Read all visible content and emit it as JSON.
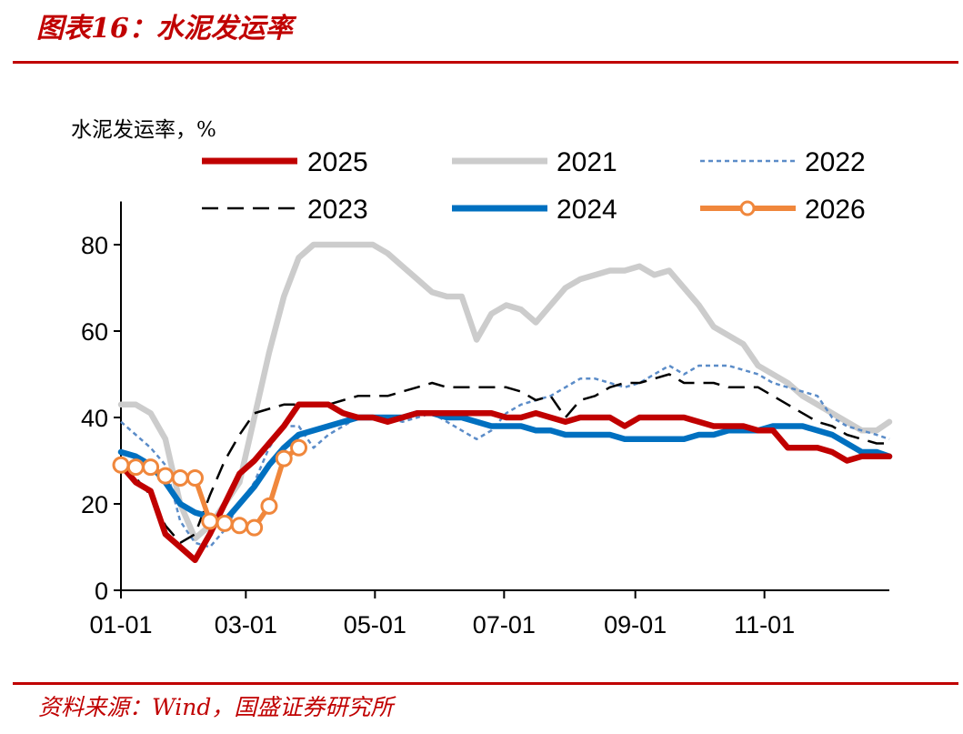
{
  "figure": {
    "number_label": "图表16：",
    "title": "水泥发运率",
    "source": "资料来源：Wind，国盛证券研究所"
  },
  "colors": {
    "brand_red": "#c00000",
    "s2025": "#c00000",
    "s2021": "#cccccc",
    "s2022": "#5b8cc8",
    "s2023": "#000000",
    "s2024": "#0070c0",
    "s2026": "#f0873c"
  },
  "chart_data": {
    "type": "line",
    "ylabel": "水泥发运率，%",
    "ylim": [
      0,
      90
    ],
    "yticks": [
      0,
      20,
      40,
      60,
      80
    ],
    "x_ticks": [
      "01-01",
      "03-01",
      "05-01",
      "07-01",
      "09-01",
      "11-01"
    ],
    "x_tick_days": [
      1,
      60,
      121,
      182,
      244,
      305
    ],
    "xlim": [
      1,
      364
    ],
    "legend_placement": "top, 3 columns",
    "grid": false,
    "series": [
      {
        "name": "2025",
        "style": "solid-thick",
        "x": [
          1,
          8,
          15,
          22,
          29,
          36,
          43,
          50,
          57,
          64,
          71,
          78,
          85,
          92,
          99,
          106,
          113,
          120,
          127,
          134,
          141,
          148,
          155,
          162,
          169,
          176,
          183,
          190,
          197,
          204,
          211,
          218,
          225,
          232,
          239,
          246,
          253,
          260,
          267,
          274,
          281,
          288,
          295,
          302,
          309,
          316,
          323,
          330,
          337,
          344,
          351,
          358,
          364
        ],
        "y": [
          29,
          25,
          23,
          13,
          10,
          7,
          13,
          20,
          27,
          30,
          34,
          38,
          43,
          43,
          43,
          41,
          40,
          40,
          39,
          40,
          41,
          41,
          41,
          41,
          41,
          41,
          40,
          40,
          41,
          40,
          39,
          40,
          40,
          40,
          38,
          40,
          40,
          40,
          40,
          39,
          38,
          38,
          38,
          37,
          37,
          33,
          33,
          33,
          32,
          30,
          31,
          31,
          31
        ]
      },
      {
        "name": "2021",
        "style": "solid-thick",
        "x": [
          1,
          8,
          15,
          22,
          29,
          36,
          43,
          50,
          57,
          64,
          71,
          78,
          85,
          92,
          99,
          106,
          113,
          120,
          127,
          134,
          141,
          148,
          155,
          162,
          169,
          176,
          183,
          190,
          197,
          204,
          211,
          218,
          225,
          232,
          239,
          246,
          253,
          260,
          267,
          274,
          281,
          288,
          295,
          302,
          309,
          316,
          323,
          330,
          337,
          344,
          351,
          358,
          364
        ],
        "y": [
          43,
          43,
          41,
          35,
          20,
          12,
          15,
          20,
          25,
          40,
          55,
          68,
          77,
          80,
          80,
          80,
          80,
          80,
          78,
          75,
          72,
          69,
          68,
          68,
          58,
          64,
          66,
          65,
          62,
          66,
          70,
          72,
          73,
          74,
          74,
          75,
          73,
          74,
          70,
          66,
          61,
          59,
          57,
          52,
          50,
          48,
          45,
          43,
          41,
          39,
          37,
          37,
          39
        ]
      },
      {
        "name": "2022",
        "style": "dotted",
        "x": [
          1,
          8,
          15,
          22,
          29,
          36,
          43,
          50,
          57,
          64,
          71,
          78,
          85,
          92,
          99,
          106,
          113,
          120,
          127,
          134,
          141,
          148,
          155,
          162,
          169,
          176,
          183,
          190,
          197,
          204,
          211,
          218,
          225,
          232,
          239,
          246,
          253,
          260,
          267,
          274,
          281,
          288,
          295,
          302,
          309,
          316,
          323,
          330,
          337,
          344,
          351,
          358,
          364
        ],
        "y": [
          39,
          36,
          33,
          29,
          16,
          11,
          10,
          14,
          20,
          25,
          33,
          38,
          38,
          33,
          36,
          38,
          40,
          40,
          40,
          39,
          40,
          41,
          39,
          37,
          35,
          37,
          41,
          43,
          44,
          45,
          47,
          49,
          49,
          48,
          47,
          48,
          50,
          52,
          50,
          52,
          52,
          52,
          51,
          50,
          48,
          47,
          46,
          45,
          40,
          38,
          37,
          36,
          35
        ]
      },
      {
        "name": "2023",
        "style": "dashed",
        "x": [
          1,
          8,
          15,
          22,
          29,
          36,
          43,
          50,
          57,
          64,
          71,
          78,
          85,
          92,
          99,
          106,
          113,
          120,
          127,
          134,
          141,
          148,
          155,
          162,
          169,
          176,
          183,
          190,
          197,
          204,
          211,
          218,
          225,
          232,
          239,
          246,
          253,
          260,
          267,
          274,
          281,
          288,
          295,
          302,
          309,
          316,
          323,
          330,
          337,
          344,
          351,
          358,
          364
        ],
        "y": [
          30,
          26,
          22,
          15,
          11,
          13,
          22,
          30,
          36,
          41,
          42,
          43,
          43,
          43,
          43,
          44,
          45,
          45,
          45,
          46,
          47,
          48,
          47,
          47,
          47,
          47,
          47,
          46,
          44,
          45,
          40,
          44,
          45,
          47,
          48,
          48,
          49,
          50,
          48,
          48,
          48,
          47,
          47,
          47,
          45,
          43,
          41,
          39,
          38,
          36,
          35,
          34,
          34
        ]
      },
      {
        "name": "2024",
        "style": "solid-thick",
        "x": [
          1,
          8,
          15,
          22,
          29,
          36,
          43,
          50,
          57,
          64,
          71,
          78,
          85,
          92,
          99,
          106,
          113,
          120,
          127,
          134,
          141,
          148,
          155,
          162,
          169,
          176,
          183,
          190,
          197,
          204,
          211,
          218,
          225,
          232,
          239,
          246,
          253,
          260,
          267,
          274,
          281,
          288,
          295,
          302,
          309,
          316,
          323,
          330,
          337,
          344,
          351,
          358,
          364
        ],
        "y": [
          32,
          31,
          29,
          25,
          20,
          18,
          17,
          16,
          20,
          24,
          29,
          33,
          36,
          37,
          38,
          39,
          40,
          40,
          40,
          40,
          41,
          41,
          40,
          40,
          39,
          38,
          38,
          38,
          37,
          37,
          36,
          36,
          36,
          36,
          35,
          35,
          35,
          35,
          35,
          36,
          36,
          37,
          37,
          37,
          38,
          38,
          38,
          37,
          36,
          34,
          32,
          32,
          31
        ]
      },
      {
        "name": "2026",
        "style": "solid-markers",
        "x": [
          1,
          8,
          15,
          22,
          29,
          36,
          43,
          50,
          57,
          64,
          71,
          78,
          85
        ],
        "y": [
          29,
          28.5,
          28.5,
          26.5,
          26,
          26,
          16,
          15.5,
          15,
          14.5,
          19.5,
          30.5,
          33
        ]
      }
    ]
  }
}
